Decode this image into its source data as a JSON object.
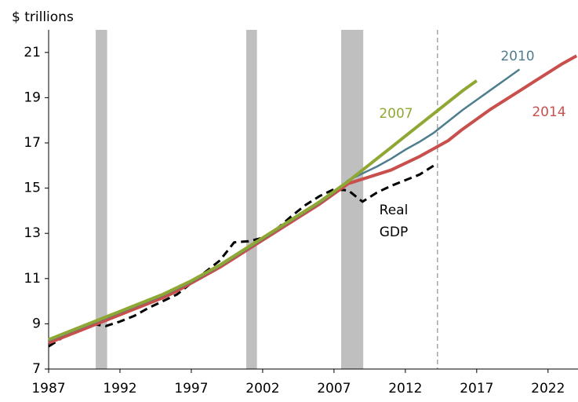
{
  "chart_data": {
    "type": "line",
    "axis_label": "$ trillions",
    "x": [
      1987,
      1988,
      1989,
      1990,
      1991,
      1992,
      1993,
      1994,
      1995,
      1996,
      1997,
      1998,
      1999,
      2000,
      2001,
      2002,
      2003,
      2004,
      2005,
      2006,
      2007,
      2008,
      2009,
      2010,
      2011,
      2012,
      2013,
      2014,
      2015,
      2016,
      2017,
      2018,
      2019,
      2020,
      2021,
      2022,
      2023,
      2024
    ],
    "series": [
      {
        "name": "2007",
        "color": "#8fa834",
        "width": 4,
        "dashed": false,
        "values": [
          8.3,
          8.55,
          8.8,
          9.05,
          9.3,
          9.55,
          9.8,
          10.05,
          10.3,
          10.6,
          10.9,
          11.25,
          11.6,
          12.0,
          12.4,
          12.8,
          13.2,
          13.6,
          14.0,
          14.4,
          14.85,
          15.3,
          15.8,
          16.3,
          16.8,
          17.3,
          17.8,
          18.3,
          18.8,
          19.3,
          19.75,
          null,
          null,
          null,
          null,
          null,
          null,
          null
        ]
      },
      {
        "name": "2010",
        "color": "#4e7d8e",
        "width": 2.5,
        "dashed": false,
        "values": [
          8.25,
          8.5,
          8.75,
          9.0,
          9.25,
          9.5,
          9.75,
          10.0,
          10.25,
          10.55,
          10.85,
          11.2,
          11.55,
          11.95,
          12.35,
          12.75,
          13.15,
          13.55,
          13.95,
          14.35,
          14.8,
          15.35,
          15.65,
          15.95,
          16.3,
          16.7,
          17.05,
          17.45,
          17.95,
          18.45,
          18.9,
          19.35,
          19.8,
          20.25,
          null,
          null,
          null,
          null
        ]
      },
      {
        "name": "2014",
        "color": "#c94f4c",
        "width": 4,
        "dashed": false,
        "values": [
          8.15,
          8.4,
          8.65,
          8.9,
          9.15,
          9.4,
          9.65,
          9.9,
          10.15,
          10.45,
          10.8,
          11.15,
          11.5,
          11.9,
          12.3,
          12.7,
          13.1,
          13.5,
          13.9,
          14.3,
          14.75,
          15.2,
          15.4,
          15.6,
          15.8,
          16.1,
          16.4,
          16.75,
          17.1,
          17.6,
          18.05,
          18.5,
          18.9,
          19.3,
          19.7,
          20.1,
          20.5,
          20.85
        ]
      },
      {
        "name": "Real GDP",
        "color": "#000000",
        "width": 3,
        "dashed": true,
        "values": [
          8.0,
          8.4,
          8.8,
          9.0,
          8.9,
          9.1,
          9.35,
          9.7,
          10.0,
          10.3,
          10.8,
          11.3,
          11.8,
          12.6,
          12.65,
          12.8,
          13.2,
          13.75,
          14.25,
          14.65,
          14.95,
          14.9,
          14.4,
          14.8,
          15.1,
          15.35,
          15.6,
          16.0,
          null,
          null,
          null,
          null,
          null,
          null,
          null,
          null,
          null,
          null
        ]
      }
    ],
    "recessions": [
      [
        1990.3,
        1991.1
      ],
      [
        2000.85,
        2001.6
      ],
      [
        2007.5,
        2009.05
      ]
    ],
    "vline": 2014.25,
    "xlim": [
      1987,
      2024.1
    ],
    "xticks": [
      1987,
      1992,
      1997,
      2002,
      2007,
      2012,
      2017,
      2022
    ],
    "ylim": [
      7,
      22
    ],
    "yticks": [
      7,
      9,
      11,
      13,
      15,
      17,
      19,
      21
    ]
  }
}
